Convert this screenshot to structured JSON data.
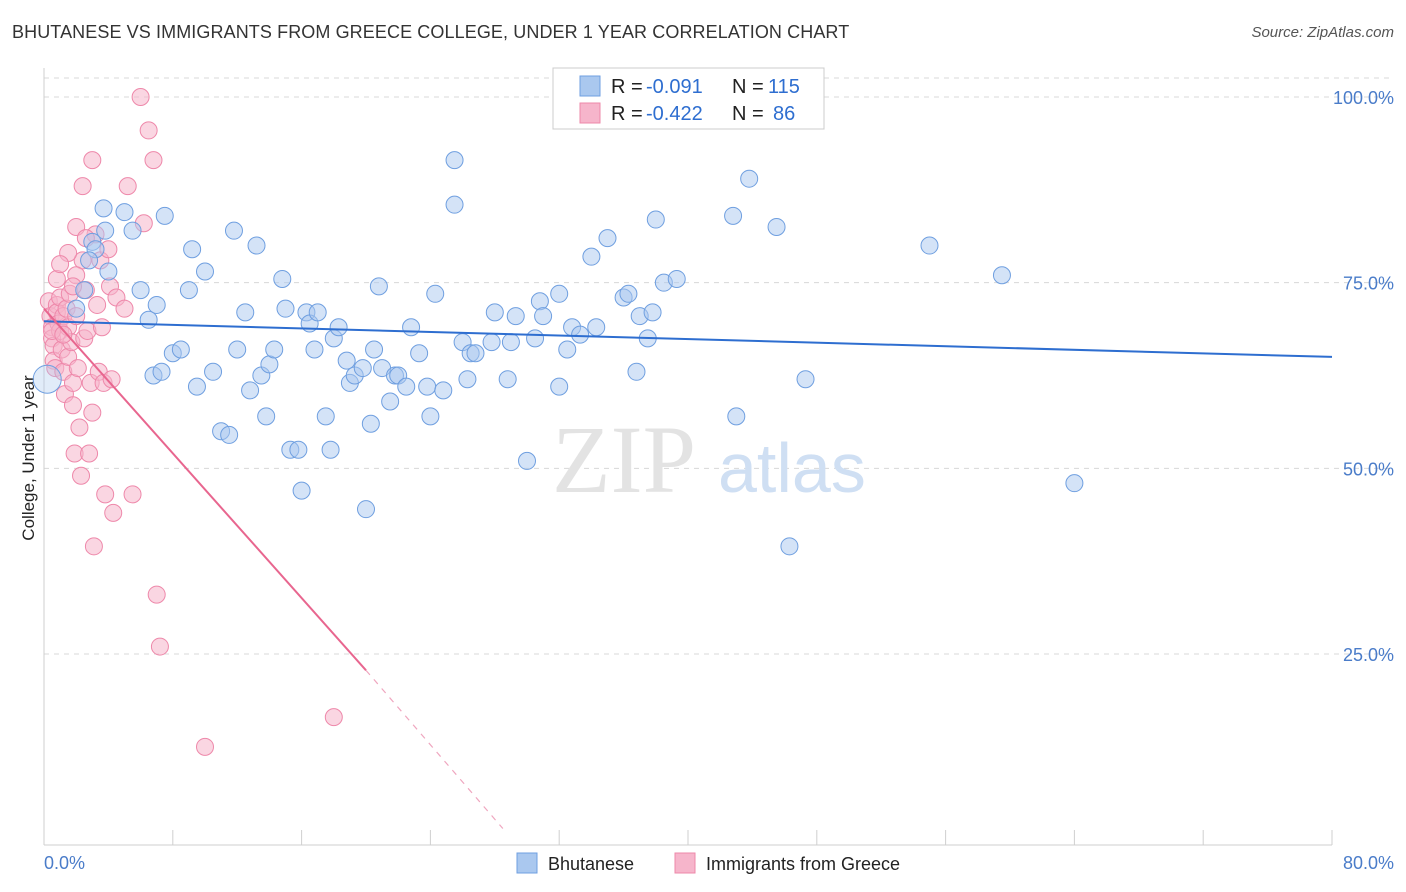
{
  "title": "BHUTANESE VS IMMIGRANTS FROM GREECE COLLEGE, UNDER 1 YEAR CORRELATION CHART",
  "source": "Source: ZipAtlas.com",
  "watermark": {
    "zip": "ZIP",
    "atlas": "atlas"
  },
  "colors": {
    "blue_fill": "#aac8ef",
    "blue_stroke": "#6f9fe0",
    "blue_line": "#2e6ed0",
    "pink_fill": "#f6b5cb",
    "pink_stroke": "#ee88aa",
    "pink_line": "#e8668f",
    "grid": "#d8d8d8",
    "tick_text": "#4a7cc9"
  },
  "legend": {
    "r_label": "R =",
    "n_label": "N =",
    "rows": [
      {
        "r": "-0.091",
        "n": "115"
      },
      {
        "r": "-0.422",
        "n": "86"
      }
    ]
  },
  "chart_data": {
    "type": "scatter",
    "title": "BHUTANESE VS IMMIGRANTS FROM GREECE COLLEGE, UNDER 1 YEAR CORRELATION CHART",
    "xlabel": "",
    "ylabel": "College, Under 1 year",
    "xlim": [
      0,
      80
    ],
    "ylim": [
      0,
      102
    ],
    "x_tick_labels": [
      "0.0%",
      "80.0%"
    ],
    "y_tick_labels": [
      "100.0%",
      "75.0%",
      "50.0%",
      "25.0%"
    ],
    "y_tick_values": [
      100,
      75,
      50,
      25
    ],
    "grid": true,
    "series": [
      {
        "name": "Bhutanese",
        "r": -0.091,
        "n": 115,
        "trend": {
          "x0": 0,
          "y0": 69.8,
          "x1": 80,
          "y1": 65.0
        },
        "points": [
          [
            2.0,
            71.5
          ],
          [
            2.5,
            74
          ],
          [
            3.0,
            80.5
          ],
          [
            3.2,
            79.5
          ],
          [
            2.8,
            78
          ],
          [
            3.7,
            85
          ],
          [
            3.8,
            82
          ],
          [
            4.0,
            76.5
          ],
          [
            5.0,
            84.5
          ],
          [
            5.5,
            82
          ],
          [
            6.0,
            74
          ],
          [
            6.5,
            70
          ],
          [
            7.0,
            72
          ],
          [
            7.5,
            84
          ],
          [
            6.8,
            62.5
          ],
          [
            7.3,
            63
          ],
          [
            8.0,
            65.5
          ],
          [
            8.5,
            66
          ],
          [
            9.0,
            74
          ],
          [
            9.2,
            79.5
          ],
          [
            9.5,
            61
          ],
          [
            10.0,
            76.5
          ],
          [
            10.5,
            63
          ],
          [
            11.0,
            55
          ],
          [
            11.5,
            54.5
          ],
          [
            11.8,
            82
          ],
          [
            12.0,
            66
          ],
          [
            12.5,
            71
          ],
          [
            12.8,
            60.5
          ],
          [
            13.2,
            80
          ],
          [
            13.5,
            62.5
          ],
          [
            13.8,
            57
          ],
          [
            14.0,
            64
          ],
          [
            14.3,
            66
          ],
          [
            14.8,
            75.5
          ],
          [
            15.0,
            71.5
          ],
          [
            15.3,
            52.5
          ],
          [
            15.8,
            52.5
          ],
          [
            16.0,
            47
          ],
          [
            16.3,
            71
          ],
          [
            16.5,
            69.5
          ],
          [
            16.8,
            66
          ],
          [
            17.0,
            71
          ],
          [
            17.5,
            57
          ],
          [
            17.8,
            52.5
          ],
          [
            18.0,
            67.5
          ],
          [
            18.3,
            69
          ],
          [
            18.8,
            64.5
          ],
          [
            19.0,
            61.5
          ],
          [
            19.3,
            62.5
          ],
          [
            19.8,
            63.5
          ],
          [
            20.0,
            44.5
          ],
          [
            20.3,
            56
          ],
          [
            20.5,
            66
          ],
          [
            20.8,
            74.5
          ],
          [
            21.0,
            63.5
          ],
          [
            21.5,
            59
          ],
          [
            21.8,
            62.5
          ],
          [
            22.0,
            62.5
          ],
          [
            22.5,
            61
          ],
          [
            22.8,
            69
          ],
          [
            23.3,
            65.5
          ],
          [
            23.8,
            61
          ],
          [
            24.0,
            57
          ],
          [
            24.3,
            73.5
          ],
          [
            24.8,
            60.5
          ],
          [
            25.5,
            91.5
          ],
          [
            25.5,
            85.5
          ],
          [
            26.0,
            67
          ],
          [
            26.3,
            62
          ],
          [
            26.5,
            65.5
          ],
          [
            26.8,
            65.5
          ],
          [
            27.8,
            67
          ],
          [
            28.0,
            71
          ],
          [
            28.8,
            62
          ],
          [
            29.0,
            67
          ],
          [
            29.3,
            70.5
          ],
          [
            30.0,
            51
          ],
          [
            30.5,
            67.5
          ],
          [
            30.8,
            72.5
          ],
          [
            31.0,
            70.5
          ],
          [
            32.0,
            73.5
          ],
          [
            32.0,
            61
          ],
          [
            32.5,
            66
          ],
          [
            32.8,
            69
          ],
          [
            33.3,
            68
          ],
          [
            34.0,
            78.5
          ],
          [
            34.3,
            69
          ],
          [
            35.0,
            81
          ],
          [
            36.0,
            73
          ],
          [
            36.3,
            73.5
          ],
          [
            36.8,
            63
          ],
          [
            37.0,
            70.5
          ],
          [
            37.5,
            67.5
          ],
          [
            37.8,
            71
          ],
          [
            38.0,
            83.5
          ],
          [
            38.5,
            75
          ],
          [
            39.3,
            75.5
          ],
          [
            42.8,
            84
          ],
          [
            43.0,
            57
          ],
          [
            43.8,
            89
          ],
          [
            45.5,
            82.5
          ],
          [
            46.3,
            39.5
          ],
          [
            47.3,
            62
          ],
          [
            55.0,
            80
          ],
          [
            59.5,
            76
          ],
          [
            64.0,
            48
          ]
        ]
      },
      {
        "name": "Immigrants from Greece",
        "r": -0.422,
        "n": 86,
        "trend": {
          "x0": 0,
          "y0": 71.5,
          "x1": 20,
          "y1": 22.8
        },
        "trend_dashed": {
          "x0": 20,
          "y0": 22.8,
          "x1": 28.5,
          "y1": 1.5
        },
        "points": [
          [
            0.3,
            72.5
          ],
          [
            0.4,
            70.5
          ],
          [
            0.5,
            69
          ],
          [
            0.5,
            67.5
          ],
          [
            0.6,
            66.5
          ],
          [
            0.6,
            64.5
          ],
          [
            0.7,
            63.5
          ],
          [
            0.8,
            72
          ],
          [
            0.8,
            71
          ],
          [
            0.9,
            69.5
          ],
          [
            1.0,
            73
          ],
          [
            1.0,
            68.5
          ],
          [
            1.1,
            66
          ],
          [
            1.2,
            70.5
          ],
          [
            1.2,
            63
          ],
          [
            1.3,
            60
          ],
          [
            1.4,
            71.5
          ],
          [
            1.5,
            69
          ],
          [
            1.5,
            65
          ],
          [
            1.6,
            73.5
          ],
          [
            1.7,
            67
          ],
          [
            1.8,
            61.5
          ],
          [
            1.8,
            58.5
          ],
          [
            1.9,
            52
          ],
          [
            2.0,
            82.5
          ],
          [
            2.0,
            70.5
          ],
          [
            2.1,
            63.5
          ],
          [
            2.2,
            55.5
          ],
          [
            2.3,
            49
          ],
          [
            2.4,
            88
          ],
          [
            2.4,
            78
          ],
          [
            2.5,
            67.5
          ],
          [
            2.6,
            74
          ],
          [
            2.7,
            68.5
          ],
          [
            2.8,
            52
          ],
          [
            2.9,
            61.5
          ],
          [
            3.0,
            57.5
          ],
          [
            3.1,
            39.5
          ],
          [
            3.2,
            81.5
          ],
          [
            3.3,
            72
          ],
          [
            3.4,
            63
          ],
          [
            3.5,
            78
          ],
          [
            3.6,
            69
          ],
          [
            3.7,
            61.5
          ],
          [
            3.8,
            46.5
          ],
          [
            4.0,
            79.5
          ],
          [
            4.1,
            74.5
          ],
          [
            4.2,
            62
          ],
          [
            4.3,
            44
          ],
          [
            4.5,
            73
          ],
          [
            5.0,
            71.5
          ],
          [
            5.2,
            88
          ],
          [
            5.5,
            46.5
          ],
          [
            6.0,
            100
          ],
          [
            6.2,
            83
          ],
          [
            6.5,
            95.5
          ],
          [
            6.8,
            91.5
          ],
          [
            7.0,
            33
          ],
          [
            7.2,
            26
          ],
          [
            10.0,
            12.5
          ],
          [
            18.0,
            16.5
          ],
          [
            3.0,
            91.5
          ],
          [
            1.5,
            79
          ],
          [
            2.0,
            76
          ],
          [
            0.8,
            75.5
          ],
          [
            1.0,
            77.5
          ],
          [
            2.6,
            81
          ],
          [
            1.8,
            74.5
          ],
          [
            0.5,
            68.5
          ],
          [
            1.2,
            68
          ]
        ]
      }
    ]
  },
  "bottom_legend": {
    "items": [
      "Bhutanese",
      "Immigrants from Greece"
    ]
  },
  "axes": {
    "x_left_label": "0.0%",
    "x_right_label": "80.0%"
  }
}
